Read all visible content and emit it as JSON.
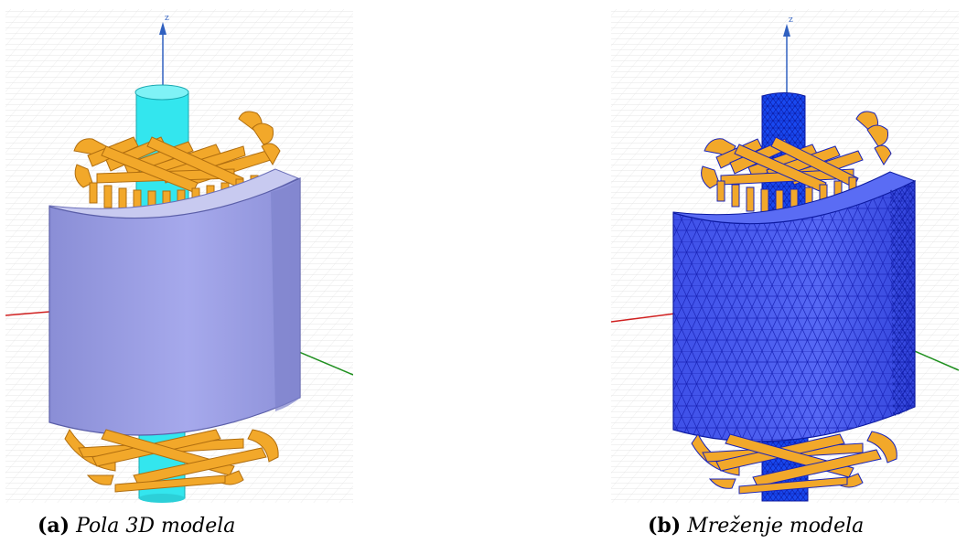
{
  "figures": [
    {
      "label": "(a)",
      "caption": "Pola 3D modela",
      "axis_label": "z",
      "colors": {
        "stator": "#9b9ee0",
        "shaft": "#33e6ee",
        "winding": "#f2a82a",
        "grid": "#d8d8d8",
        "axis_x": "#d02020",
        "axis_y": "#209020",
        "axis_z": "#3060c0"
      }
    },
    {
      "label": "(b)",
      "caption": "Mreženje modela",
      "axis_label": "z",
      "colors": {
        "stator": "#4a5cf0",
        "shaft": "#1848f0",
        "winding": "#f2a82a",
        "mesh_lines": "#1020b0",
        "grid": "#d8d8d8",
        "axis_x": "#d02020",
        "axis_y": "#209020",
        "axis_z": "#3060c0"
      }
    }
  ]
}
